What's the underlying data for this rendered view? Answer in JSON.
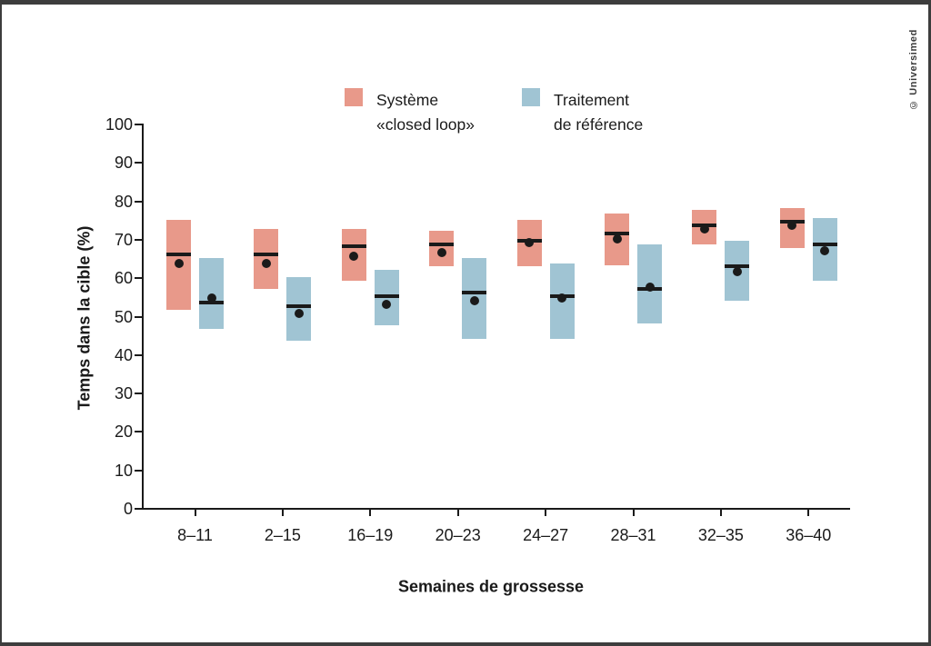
{
  "credit": "© Universimed",
  "legend": {
    "closed_loop": {
      "line1": "Système",
      "line2": "«closed loop»"
    },
    "reference": {
      "line1": "Traitement",
      "line2": "de référence"
    }
  },
  "chart_data": {
    "type": "floating-bar",
    "title": "",
    "xlabel": "Semaines de grossesse",
    "ylabel": "Temps dans la cible (%)",
    "ylim": [
      0,
      100
    ],
    "ytick_step": 10,
    "grid": false,
    "legend_position": "top-center",
    "marker_color": "#1a1a1a",
    "axis_color": "#1a1a1a",
    "categories": [
      "8–11",
      "2–15",
      "16–19",
      "20–23",
      "24–27",
      "28–31",
      "32–35",
      "36–40"
    ],
    "series": [
      {
        "name": "Système «closed loop»",
        "color": "#E8998A",
        "bars": [
          {
            "low": 51.5,
            "high": 75,
            "median": 66,
            "mean": 63.5
          },
          {
            "low": 57,
            "high": 72.5,
            "median": 66,
            "mean": 63.5
          },
          {
            "low": 59,
            "high": 72.5,
            "median": 68,
            "mean": 65.5
          },
          {
            "low": 63,
            "high": 72,
            "median": 68.5,
            "mean": 66.5
          },
          {
            "low": 63,
            "high": 75,
            "median": 69.5,
            "mean": 69
          },
          {
            "low": 63,
            "high": 76.5,
            "median": 71.5,
            "mean": 70
          },
          {
            "low": 68.5,
            "high": 77.5,
            "median": 73.5,
            "mean": 72.5
          },
          {
            "low": 67.5,
            "high": 78,
            "median": 74.5,
            "mean": 73.5
          }
        ]
      },
      {
        "name": "Traitement de référence",
        "color": "#A0C4D3",
        "bars": [
          {
            "low": 46.5,
            "high": 65,
            "median": 53.5,
            "mean": 54.5
          },
          {
            "low": 43.5,
            "high": 60,
            "median": 52.5,
            "mean": 50.5
          },
          {
            "low": 47.5,
            "high": 62,
            "median": 55,
            "mean": 53
          },
          {
            "low": 44,
            "high": 65,
            "median": 56,
            "mean": 54
          },
          {
            "low": 44,
            "high": 63.5,
            "median": 55,
            "mean": 54.5
          },
          {
            "low": 48,
            "high": 68.5,
            "median": 57,
            "mean": 57.5
          },
          {
            "low": 54,
            "high": 69.5,
            "median": 63,
            "mean": 61.5
          },
          {
            "low": 59,
            "high": 75.5,
            "median": 68.5,
            "mean": 67
          }
        ]
      }
    ]
  }
}
